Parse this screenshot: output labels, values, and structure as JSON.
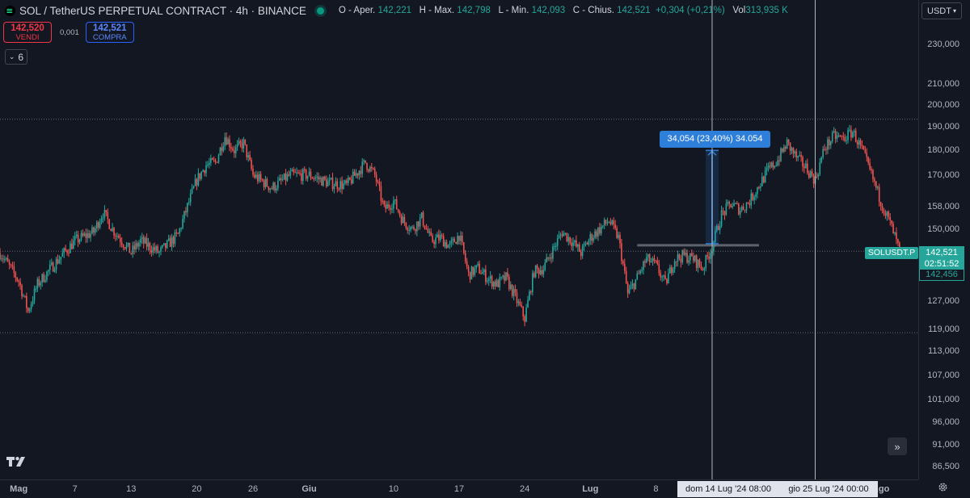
{
  "legend": {
    "symbol": "SOL / TetherUS PERPETUAL CONTRACT",
    "interval": "4h",
    "exchange": "BINANCE",
    "open_label": "O - Aper.",
    "open": "142,221",
    "high_label": "H - Max.",
    "high": "142,798",
    "low_label": "L - Min.",
    "low": "142,093",
    "close_label": "C - Chius.",
    "close": "142,521",
    "change": "+0,304 (+0,21%)",
    "vol_label": "Vol",
    "vol": "313,935 K"
  },
  "trade": {
    "sell_price": "142,520",
    "sell_label": "VENDI",
    "spread": "0,001",
    "buy_price": "142,521",
    "buy_label": "COMPRA"
  },
  "indicators_count": "6",
  "currency": "USDT",
  "measure_label": "34,054 (23,40%) 34.054",
  "price_tags": {
    "symbol_label": "SOLUSDT.P",
    "last_price": "142,521",
    "countdown": "02:51:52",
    "prev_price": "142,456"
  },
  "crosshair": {
    "time_1": "dom 14 Lug '24   08:00",
    "time_2": "gio 25 Lug '24   00:00"
  },
  "colors": {
    "up": "#26a69a",
    "down": "#ef5350",
    "background": "#131722",
    "measure": "#2e7fd9"
  },
  "chart_data": {
    "type": "candlestick",
    "scale": "log",
    "ylim": [
      84000,
      255000
    ],
    "y_ticks": [
      {
        "value": 230000,
        "label": "230,000"
      },
      {
        "value": 210000,
        "label": "210,000"
      },
      {
        "value": 200000,
        "label": "200,000"
      },
      {
        "value": 190000,
        "label": "190,000"
      },
      {
        "value": 180000,
        "label": "180,000"
      },
      {
        "value": 170000,
        "label": "170,000"
      },
      {
        "value": 158000,
        "label": "158,000"
      },
      {
        "value": 150000,
        "label": "150,000"
      },
      {
        "value": 127000,
        "label": "127,000"
      },
      {
        "value": 119000,
        "label": "119,000"
      },
      {
        "value": 113000,
        "label": "113,000"
      },
      {
        "value": 107000,
        "label": "107,000"
      },
      {
        "value": 101000,
        "label": "101,000"
      },
      {
        "value": 96000,
        "label": "96,000"
      },
      {
        "value": 91000,
        "label": "91,000"
      },
      {
        "value": 86500,
        "label": "86,500"
      }
    ],
    "x_range": [
      "2024-04-29",
      "2024-08-05"
    ],
    "x_ticks": [
      {
        "date": "2024-05-01",
        "label": "Mag",
        "bold": true
      },
      {
        "date": "2024-05-07",
        "label": "7",
        "bold": false
      },
      {
        "date": "2024-05-13",
        "label": "13",
        "bold": false
      },
      {
        "date": "2024-05-20",
        "label": "20",
        "bold": false
      },
      {
        "date": "2024-05-26",
        "label": "26",
        "bold": false
      },
      {
        "date": "2024-06-01",
        "label": "Giu",
        "bold": true
      },
      {
        "date": "2024-06-10",
        "label": "10",
        "bold": false
      },
      {
        "date": "2024-06-17",
        "label": "17",
        "bold": false
      },
      {
        "date": "2024-06-24",
        "label": "24",
        "bold": false
      },
      {
        "date": "2024-07-01",
        "label": "Lug",
        "bold": true
      },
      {
        "date": "2024-07-08",
        "label": "8",
        "bold": false
      },
      {
        "date": "2024-08-01",
        "label": "Ago",
        "bold": true
      }
    ],
    "price_path": [
      [
        "2024-04-29",
        142000
      ],
      [
        "2024-05-01",
        133000
      ],
      [
        "2024-05-02",
        124000
      ],
      [
        "2024-05-03",
        132000
      ],
      [
        "2024-05-05",
        139000
      ],
      [
        "2024-05-07",
        146000
      ],
      [
        "2024-05-09",
        149000
      ],
      [
        "2024-05-10",
        156000
      ],
      [
        "2024-05-11",
        150000
      ],
      [
        "2024-05-12",
        146000
      ],
      [
        "2024-05-13",
        142000
      ],
      [
        "2024-05-14",
        146000
      ],
      [
        "2024-05-15",
        144000
      ],
      [
        "2024-05-16",
        142000
      ],
      [
        "2024-05-17",
        145000
      ],
      [
        "2024-05-18",
        148000
      ],
      [
        "2024-05-19",
        158000
      ],
      [
        "2024-05-20",
        168000
      ],
      [
        "2024-05-21",
        174000
      ],
      [
        "2024-05-22",
        175000
      ],
      [
        "2024-05-23",
        186000
      ],
      [
        "2024-05-24",
        180000
      ],
      [
        "2024-05-25",
        183000
      ],
      [
        "2024-05-26",
        170000
      ],
      [
        "2024-05-28",
        165000
      ],
      [
        "2024-05-30",
        170000
      ],
      [
        "2024-06-01",
        170000
      ],
      [
        "2024-06-03",
        167000
      ],
      [
        "2024-06-05",
        166000
      ],
      [
        "2024-06-07",
        175000
      ],
      [
        "2024-06-08",
        170000
      ],
      [
        "2024-06-09",
        157000
      ],
      [
        "2024-06-10",
        160000
      ],
      [
        "2024-06-11",
        153000
      ],
      [
        "2024-06-12",
        150000
      ],
      [
        "2024-06-13",
        154000
      ],
      [
        "2024-06-14",
        146000
      ],
      [
        "2024-06-15",
        147000
      ],
      [
        "2024-06-16",
        144000
      ],
      [
        "2024-06-17",
        148000
      ],
      [
        "2024-06-18",
        135000
      ],
      [
        "2024-06-19",
        137000
      ],
      [
        "2024-06-20",
        134000
      ],
      [
        "2024-06-21",
        132000
      ],
      [
        "2024-06-22",
        134000
      ],
      [
        "2024-06-23",
        128000
      ],
      [
        "2024-06-24",
        122000
      ],
      [
        "2024-06-25",
        136000
      ],
      [
        "2024-06-26",
        137000
      ],
      [
        "2024-06-27",
        143000
      ],
      [
        "2024-06-28",
        149000
      ],
      [
        "2024-06-29",
        146000
      ],
      [
        "2024-06-30",
        142000
      ],
      [
        "2024-07-01",
        147000
      ],
      [
        "2024-07-02",
        150000
      ],
      [
        "2024-07-03",
        153000
      ],
      [
        "2024-07-04",
        147000
      ],
      [
        "2024-07-05",
        129000
      ],
      [
        "2024-07-06",
        134000
      ],
      [
        "2024-07-07",
        140000
      ],
      [
        "2024-07-08",
        138000
      ],
      [
        "2024-07-09",
        132000
      ],
      [
        "2024-07-10",
        140000
      ],
      [
        "2024-07-11",
        141000
      ],
      [
        "2024-07-12",
        140000
      ],
      [
        "2024-07-13",
        137000
      ],
      [
        "2024-07-14",
        144000
      ],
      [
        "2024-07-15",
        155000
      ],
      [
        "2024-07-16",
        159000
      ],
      [
        "2024-07-17",
        157000
      ],
      [
        "2024-07-18",
        160000
      ],
      [
        "2024-07-19",
        166000
      ],
      [
        "2024-07-20",
        172000
      ],
      [
        "2024-07-21",
        176000
      ],
      [
        "2024-07-22",
        183000
      ],
      [
        "2024-07-23",
        177000
      ],
      [
        "2024-07-24",
        173000
      ],
      [
        "2024-07-25",
        168000
      ],
      [
        "2024-07-26",
        181000
      ],
      [
        "2024-07-27",
        186000
      ],
      [
        "2024-07-28",
        185000
      ],
      [
        "2024-07-29",
        188000
      ],
      [
        "2024-07-30",
        180000
      ],
      [
        "2024-07-31",
        170000
      ],
      [
        "2024-08-01",
        160000
      ],
      [
        "2024-08-02",
        152000
      ],
      [
        "2024-08-03",
        142500
      ]
    ],
    "annotations": {
      "hlines": [
        193500,
        142521,
        118000
      ],
      "measure": {
        "from": 145000,
        "to": 180000,
        "date": "2024-07-14"
      },
      "range_box": {
        "start": "2024-07-06",
        "end": "2024-07-19",
        "price": 144500
      },
      "vlines": [
        "2024-07-14",
        "2024-07-25"
      ]
    }
  }
}
